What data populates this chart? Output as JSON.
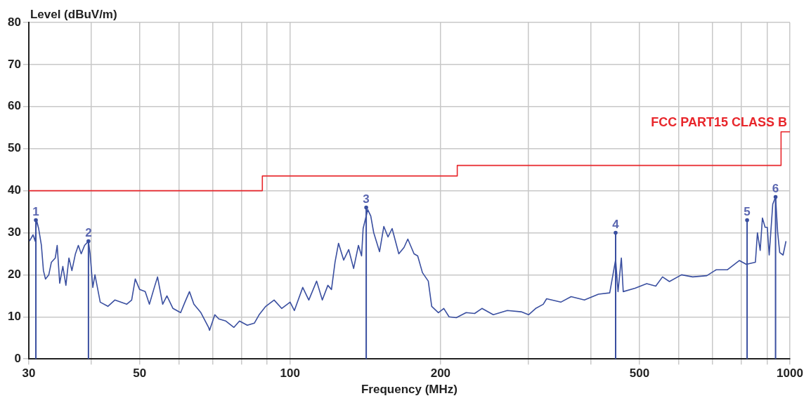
{
  "chart_data": {
    "type": "line",
    "xlabel": "Frequency (MHz)",
    "ylabel": "Level (dBuV/m)",
    "log": "x",
    "xlim": [
      30,
      1000
    ],
    "ylim": [
      0,
      80
    ],
    "xticks": [
      30,
      {
        "value": 40,
        "label": null
      },
      50,
      {
        "value": 60,
        "label": null
      },
      {
        "value": 70,
        "label": null
      },
      {
        "value": 80,
        "label": null
      },
      {
        "value": 90,
        "label": null
      },
      100,
      200,
      {
        "value": 300,
        "label": null
      },
      {
        "value": 400,
        "label": null
      },
      500,
      {
        "value": 600,
        "label": null
      },
      {
        "value": 700,
        "label": null
      },
      {
        "value": 800,
        "label": null
      },
      {
        "value": 900,
        "label": null
      },
      1000
    ],
    "yticks": [
      0,
      10,
      20,
      30,
      40,
      50,
      60,
      70,
      80
    ],
    "grid": true,
    "legend": false,
    "marker": "none",
    "line_style": "solid",
    "series": [
      {
        "type": "line",
        "color": "#3a4fa0",
        "x": [
          30.1,
          30.6,
          30.9,
          31.1,
          31.4,
          31.8,
          32.1,
          32.4,
          32.9,
          33.3,
          33.9,
          34.2,
          34.6,
          35.1,
          35.6,
          36.1,
          36.6,
          37.2,
          37.7,
          38.2,
          38.8,
          39.5,
          39.8,
          40.3,
          40.7,
          41.7,
          43.2,
          44.6,
          47.1,
          48.2,
          49.0,
          50.0,
          51.3,
          52.3,
          53.5,
          54.3,
          55.6,
          56.7,
          58.3,
          60.4,
          61.6,
          62.9,
          64.2,
          66.3,
          68.7,
          69.0,
          70.7,
          72.0,
          74.4,
          77.2,
          79.2,
          82.1,
          84.8,
          86.7,
          89.4,
          92.9,
          96.2,
          100,
          102,
          106,
          109,
          113,
          116,
          119,
          121,
          123,
          125,
          128,
          131,
          134,
          137,
          139,
          140,
          143,
          145,
          147,
          151,
          154,
          157,
          160,
          165,
          169,
          172,
          177,
          180,
          184,
          189,
          192,
          198,
          203,
          208,
          215,
          225,
          234,
          242,
          255,
          272,
          290,
          300,
          310,
          321,
          326,
          348,
          365,
          388,
          414,
          436,
          448,
          453,
          460,
          464,
          490,
          517,
          539,
          556,
          574,
          607,
          639,
          682,
          712,
          750,
          792,
          818,
          853,
          861,
          872,
          881,
          892,
          901,
          909,
          924,
          936,
          945,
          954,
          969,
          982
        ],
        "values": [
          28,
          29.5,
          28,
          33,
          31,
          27,
          21,
          19,
          20,
          23,
          24,
          27,
          18,
          22,
          17.5,
          24,
          21,
          25,
          27,
          25,
          27,
          28,
          25,
          17,
          20,
          13.5,
          12.5,
          14,
          13,
          14,
          19,
          16.5,
          16,
          13,
          17,
          19.5,
          13,
          15,
          12,
          11,
          13.5,
          16,
          13,
          11,
          7.5,
          6.8,
          10.5,
          9.5,
          9,
          7.5,
          9,
          8,
          8.5,
          10.5,
          12.5,
          14,
          12,
          13.5,
          11.5,
          17,
          14,
          18.5,
          14,
          17.5,
          16.5,
          23,
          27.5,
          23.5,
          26,
          21.5,
          27,
          24.5,
          31,
          35.5,
          34,
          30,
          25.5,
          31.5,
          29,
          31,
          25,
          26.5,
          28.5,
          25,
          24.5,
          20.5,
          18.5,
          12.5,
          11,
          12,
          10,
          9.8,
          11,
          10.8,
          12,
          10.5,
          11.5,
          11.2,
          10.5,
          12,
          13,
          14.3,
          13.5,
          14.8,
          14,
          15.4,
          15.7,
          23.6,
          16,
          24,
          16,
          16.8,
          17.9,
          17.3,
          19.5,
          18.4,
          20,
          19.5,
          19.8,
          21.2,
          21.2,
          23.4,
          22.5,
          23,
          30,
          25.8,
          33.5,
          31.3,
          31.3,
          24.7,
          36.8,
          38.5,
          30.2,
          25.3,
          24.7,
          28
        ]
      },
      {
        "type": "step",
        "name": "FCC PART15 CLASS B",
        "color": "#e8262b",
        "x": [
          30,
          88,
          216,
          960,
          1000
        ],
        "values": [
          40,
          43.5,
          46,
          54,
          54
        ]
      },
      {
        "type": "lollipop",
        "color": "#3a4fa0",
        "marker": "circle",
        "x": [
          31.0,
          39.5,
          142,
          448,
          821,
          936
        ],
        "values": [
          33,
          28,
          36,
          30,
          33,
          38.5
        ]
      }
    ],
    "annotations": [
      {
        "text": "1",
        "x": 31.0,
        "y": 33
      },
      {
        "text": "2",
        "x": 39.5,
        "y": 28
      },
      {
        "text": "3",
        "x": 142,
        "y": 36
      },
      {
        "text": "4",
        "x": 448,
        "y": 30
      },
      {
        "text": "5",
        "x": 821,
        "y": 33
      },
      {
        "text": "6",
        "x": 936,
        "y": 38.5
      }
    ]
  }
}
